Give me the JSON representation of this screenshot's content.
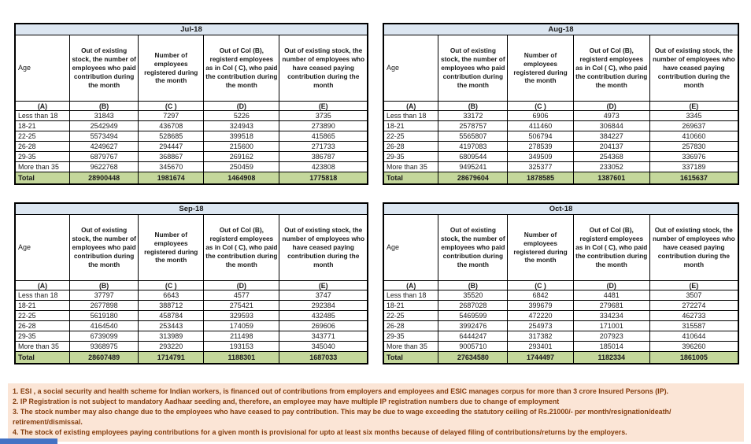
{
  "report": {
    "columns": {
      "age": "Age",
      "b": "Out of existing stock, the number of employees who paid contribution during the month",
      "c": "Number of employees registered during the month",
      "d": "Out of Col (B), registerd employees as in Col ( C), who paid the contribution during the month",
      "e": "Out of existing stock, the number of employees who have ceased paying contribution during the month",
      "letters": [
        "(A)",
        "(B)",
        "(C )",
        "(D)",
        "(E)"
      ],
      "total_label": "Total"
    },
    "months": [
      {
        "title": "Jul-18",
        "rows": [
          [
            "Less than 18",
            "31843",
            "7297",
            "5226",
            "3735"
          ],
          [
            "18-21",
            "2542949",
            "436708",
            "324943",
            "273890"
          ],
          [
            "22-25",
            "5573494",
            "528685",
            "399518",
            "415865"
          ],
          [
            "26-28",
            "4249627",
            "294447",
            "215600",
            "271733"
          ],
          [
            "29-35",
            "6879767",
            "368867",
            "269162",
            "386787"
          ],
          [
            "More than 35",
            "9622768",
            "345670",
            "250459",
            "423808"
          ]
        ],
        "total": [
          "28900448",
          "1981674",
          "1464908",
          "1775818"
        ]
      },
      {
        "title": "Aug-18",
        "rows": [
          [
            "Less than 18",
            "33172",
            "6906",
            "4973",
            "3345"
          ],
          [
            "18-21",
            "2578757",
            "411460",
            "306844",
            "269637"
          ],
          [
            "22-25",
            "5565807",
            "506794",
            "384227",
            "410660"
          ],
          [
            "26-28",
            "4197083",
            "278539",
            "204137",
            "257830"
          ],
          [
            "29-35",
            "6809544",
            "349509",
            "254368",
            "336976"
          ],
          [
            "More than 35",
            "9495241",
            "325377",
            "233052",
            "337189"
          ]
        ],
        "total": [
          "28679604",
          "1878585",
          "1387601",
          "1615637"
        ]
      },
      {
        "title": "Sep-18",
        "rows": [
          [
            "Less than 18",
            "37797",
            "6643",
            "4577",
            "3747"
          ],
          [
            "18-21",
            "2677898",
            "388712",
            "275421",
            "292384"
          ],
          [
            "22-25",
            "5619180",
            "458784",
            "329593",
            "432485"
          ],
          [
            "26-28",
            "4164540",
            "253443",
            "174059",
            "269606"
          ],
          [
            "29-35",
            "6739099",
            "313989",
            "211498",
            "343771"
          ],
          [
            "More than 35",
            "9368975",
            "293220",
            "193153",
            "345040"
          ]
        ],
        "total": [
          "28607489",
          "1714791",
          "1188301",
          "1687033"
        ]
      },
      {
        "title": "Oct-18",
        "rows": [
          [
            "Less than 18",
            "35520",
            "6842",
            "4481",
            "3507"
          ],
          [
            "18-21",
            "2687028",
            "399679",
            "279681",
            "272274"
          ],
          [
            "22-25",
            "5469599",
            "472220",
            "334234",
            "462733"
          ],
          [
            "26-28",
            "3992476",
            "254973",
            "171001",
            "315587"
          ],
          [
            "29-35",
            "6444247",
            "317382",
            "207923",
            "410644"
          ],
          [
            "More than 35",
            "9005710",
            "293401",
            "185014",
            "396260"
          ]
        ],
        "total": [
          "27634580",
          "1744497",
          "1182334",
          "1861005"
        ]
      }
    ],
    "footnotes": [
      "1. ESI , a social security and health scheme for Indian workers, is financed out of contributions from employers and employees and ESIC manages corpus for more than 3 crore Insured Persons (IP).",
      "2. IP Registration is not subject to mandatory Aadhaar seeding and, therefore, an employee may have multiple IP registration numbers due to change of employment",
      "3. The stock number may also change due to the employees who have ceased to pay contribution. This may be due to wage exceeding the statutory ceiling of Rs.21000/- per month/resignation/death/ retirement/dismissal.",
      "4. The stock of existing employees paying contributions for a given month is provisional for upto at least six months because of delayed filing of contributions/returns by the employers."
    ],
    "colors": {
      "month_header_bg": "#dce6f1",
      "month_header_text": "#17375d",
      "total_row_bg": "#c4d79b",
      "footnote_bg": "#fbe5d6",
      "footnote_text": "#843c0c",
      "bottom_bar": "#4472c4"
    }
  }
}
